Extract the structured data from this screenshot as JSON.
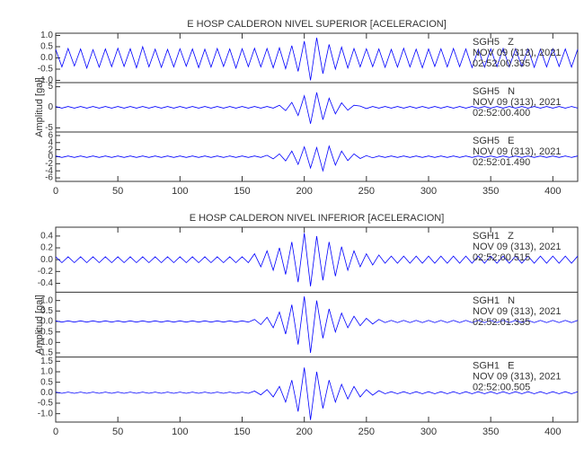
{
  "chart_data": [
    {
      "type": "line",
      "title": "E HOSP CALDERON NIVEL SUPERIOR [ACELERACION]",
      "y_label": "Amplitud [gal]",
      "xlim": [
        0,
        420
      ],
      "xticks": [
        0,
        50,
        100,
        150,
        200,
        250,
        300,
        350,
        400
      ],
      "x": [
        0,
        5,
        10,
        15,
        20,
        25,
        30,
        35,
        40,
        45,
        50,
        55,
        60,
        65,
        70,
        75,
        80,
        85,
        90,
        95,
        100,
        105,
        110,
        115,
        120,
        125,
        130,
        135,
        140,
        145,
        150,
        155,
        160,
        165,
        170,
        175,
        180,
        185,
        190,
        195,
        200,
        205,
        210,
        215,
        220,
        225,
        230,
        235,
        240,
        245,
        250,
        255,
        260,
        265,
        270,
        275,
        280,
        285,
        290,
        295,
        300,
        305,
        310,
        315,
        320,
        325,
        330,
        335,
        340,
        345,
        350,
        355,
        360,
        365,
        370,
        375,
        380,
        385,
        390,
        395,
        400,
        405,
        410,
        415,
        420
      ],
      "series": [
        {
          "name": "SGH5   Z",
          "date": "NOV 09 (313), 2021",
          "time": "02:52:00.335",
          "color": "#0000ff",
          "ylim": [
            -1.1,
            1.1
          ],
          "yticks": [
            {
              "value": -1,
              "label": "-1.0"
            },
            -0.5,
            {
              "value": 0,
              "label": "0.0"
            },
            0.5,
            {
              "value": 1,
              "label": "1.0"
            }
          ],
          "values": [
            0.38,
            -0.4,
            0.42,
            -0.36,
            0.4,
            -0.45,
            0.37,
            -0.41,
            0.4,
            -0.39,
            0.43,
            -0.38,
            0.41,
            -0.44,
            0.5,
            -0.4,
            0.39,
            -0.42,
            0.38,
            -0.4,
            0.41,
            -0.37,
            0.4,
            -0.43,
            0.39,
            -0.41,
            0.42,
            -0.38,
            0.4,
            -0.45,
            0.41,
            -0.39,
            0.43,
            -0.4,
            0.42,
            -0.44,
            0.45,
            -0.48,
            0.55,
            -0.6,
            0.75,
            -1.0,
            0.9,
            -0.7,
            0.6,
            -0.5,
            0.48,
            -0.45,
            0.42,
            -0.4,
            0.41,
            -0.39,
            0.4,
            -0.42,
            0.38,
            -0.41,
            0.43,
            -0.4,
            0.39,
            -0.44,
            0.4,
            -0.38,
            0.41,
            -0.4,
            0.42,
            -0.39,
            0.4,
            -0.43,
            0.38,
            -0.41,
            0.4,
            -0.39,
            0.42,
            -0.4,
            0.41,
            -0.38,
            0.4,
            -0.42,
            0.39,
            -0.4,
            0.41,
            -0.38,
            0.4,
            -0.41,
            0.39
          ]
        },
        {
          "name": "SGH5   N",
          "date": "NOV 09 (313), 2021",
          "time": "02:52:00.400",
          "color": "#0000ff",
          "ylim": [
            -6,
            6
          ],
          "yticks": [
            -5,
            0,
            5
          ],
          "values": [
            0.2,
            -0.2,
            0.2,
            -0.2,
            0.2,
            -0.2,
            0.2,
            -0.2,
            0.2,
            -0.2,
            0.2,
            -0.2,
            0.2,
            -0.2,
            0.2,
            -0.2,
            0.2,
            -0.2,
            0.2,
            -0.2,
            0.2,
            -0.2,
            0.2,
            -0.2,
            0.2,
            -0.2,
            0.2,
            -0.2,
            0.2,
            -0.2,
            0.2,
            -0.2,
            0.2,
            -0.2,
            0.2,
            -0.2,
            0.5,
            -0.8,
            1.2,
            -2,
            2.8,
            -4,
            3.6,
            -3,
            2.2,
            -1.6,
            1.1,
            -0.7,
            0.5,
            0.3,
            -0.3,
            0.2,
            -0.2,
            0.2,
            -0.2,
            0.2,
            -0.2,
            0.2,
            -0.2,
            0.2,
            -0.2,
            0.2,
            -0.2,
            0.2,
            -0.2,
            0.2,
            -0.2,
            0.2,
            -0.2,
            0.2,
            -0.2,
            0.2,
            -0.2,
            0.2,
            -0.2,
            0.2,
            -0.2,
            0.2,
            -0.2,
            0.2,
            -0.2,
            0.2,
            -0.2,
            0.2,
            -0.2
          ]
        },
        {
          "name": "SGH5   E",
          "date": "NOV 09 (313), 2021",
          "time": "02:52:01.490",
          "color": "#0000ff",
          "ylim": [
            -7,
            7
          ],
          "yticks": [
            -6,
            -4,
            -2,
            0,
            2,
            4,
            6
          ],
          "values": [
            0.2,
            -0.2,
            0.2,
            -0.2,
            0.2,
            -0.2,
            0.2,
            -0.2,
            0.2,
            -0.2,
            0.2,
            -0.2,
            0.2,
            -0.2,
            0.2,
            -0.2,
            0.2,
            -0.2,
            0.2,
            -0.2,
            0.2,
            -0.2,
            0.2,
            -0.2,
            0.2,
            -0.2,
            0.2,
            -0.2,
            0.2,
            -0.2,
            0.2,
            -0.2,
            0.2,
            -0.2,
            0.4,
            -0.6,
            0.8,
            -1.2,
            1.6,
            -2.2,
            2.8,
            -3.2,
            2.6,
            -4,
            3,
            -2.4,
            1.6,
            -1.1,
            0.8,
            -0.5,
            0.3,
            -0.3,
            0.2,
            -0.2,
            0.2,
            -0.2,
            0.2,
            -0.2,
            0.2,
            -0.2,
            0.2,
            -0.2,
            0.2,
            -0.2,
            0.2,
            -0.2,
            0.2,
            -0.2,
            0.2,
            -0.2,
            0.2,
            -0.2,
            0.2,
            -0.2,
            0.2,
            -0.2,
            0.2,
            -0.2,
            0.2,
            -0.2,
            0.2,
            -0.2,
            0.2,
            -0.2,
            0.2
          ]
        }
      ]
    },
    {
      "type": "line",
      "title": "E HOSP CALDERON NIVEL INFERIOR [ACELERACION]",
      "y_label": "Amplitud [gal]",
      "xlim": [
        0,
        420
      ],
      "xticks": [
        0,
        50,
        100,
        150,
        200,
        250,
        300,
        350,
        400
      ],
      "x": [
        0,
        5,
        10,
        15,
        20,
        25,
        30,
        35,
        40,
        45,
        50,
        55,
        60,
        65,
        70,
        75,
        80,
        85,
        90,
        95,
        100,
        105,
        110,
        115,
        120,
        125,
        130,
        135,
        140,
        145,
        150,
        155,
        160,
        165,
        170,
        175,
        180,
        185,
        190,
        195,
        200,
        205,
        210,
        215,
        220,
        225,
        230,
        235,
        240,
        245,
        250,
        255,
        260,
        265,
        270,
        275,
        280,
        285,
        290,
        295,
        300,
        305,
        310,
        315,
        320,
        325,
        330,
        335,
        340,
        345,
        350,
        355,
        360,
        365,
        370,
        375,
        380,
        385,
        390,
        395,
        400,
        405,
        410,
        415,
        420
      ],
      "series": [
        {
          "name": "SGH1   Z",
          "date": "NOV 09 (313), 2021",
          "time": "02:52:00.515",
          "color": "#0000ff",
          "ylim": [
            -0.55,
            0.55
          ],
          "yticks": [
            -0.4,
            -0.2,
            {
              "value": 0,
              "label": "0.0"
            },
            0.2,
            0.4
          ],
          "values": [
            0.05,
            -0.05,
            0.05,
            -0.05,
            0.05,
            -0.05,
            0.05,
            -0.05,
            0.05,
            -0.05,
            0.05,
            -0.05,
            0.05,
            -0.05,
            0.05,
            -0.05,
            0.05,
            -0.05,
            0.05,
            -0.05,
            0.05,
            -0.05,
            0.05,
            -0.05,
            0.05,
            -0.05,
            0.05,
            -0.05,
            0.05,
            -0.05,
            0.05,
            -0.05,
            0.1,
            -0.12,
            0.15,
            -0.18,
            0.2,
            -0.25,
            0.3,
            -0.38,
            0.45,
            -0.45,
            0.4,
            -0.35,
            0.3,
            -0.28,
            0.22,
            -0.18,
            0.15,
            -0.12,
            0.1,
            -0.09,
            0.08,
            -0.06,
            0.06,
            -0.06,
            0.06,
            -0.06,
            0.06,
            -0.06,
            0.06,
            -0.06,
            0.06,
            -0.06,
            0.06,
            -0.06,
            0.06,
            -0.06,
            0.06,
            -0.06,
            0.06,
            -0.06,
            0.06,
            -0.06,
            0.06,
            -0.06,
            0.06,
            -0.06,
            0.06,
            -0.06,
            0.06,
            -0.06,
            0.06,
            -0.06,
            0.06
          ]
        },
        {
          "name": "SGH1   N",
          "date": "NOV 09 (313), 2021",
          "time": "02:52:01.335",
          "color": "#0000ff",
          "ylim": [
            -1.7,
            1.4
          ],
          "yticks": [
            -1.5,
            {
              "value": -1,
              "label": "-1.0"
            },
            -0.5,
            {
              "value": 0,
              "label": "0.0"
            },
            0.5,
            {
              "value": 1,
              "label": "1.0"
            }
          ],
          "values": [
            0.03,
            -0.03,
            0.03,
            -0.03,
            0.03,
            -0.03,
            0.03,
            -0.03,
            0.03,
            -0.03,
            0.03,
            -0.03,
            0.03,
            -0.03,
            0.03,
            -0.03,
            0.03,
            -0.03,
            0.03,
            -0.03,
            0.03,
            -0.03,
            0.03,
            -0.03,
            0.03,
            -0.03,
            0.03,
            -0.03,
            0.03,
            -0.03,
            0.03,
            -0.03,
            0.1,
            -0.15,
            0.2,
            -0.3,
            0.45,
            -0.6,
            0.8,
            -1.1,
            1.2,
            -1.5,
            1.0,
            -0.8,
            0.6,
            -0.5,
            0.4,
            -0.3,
            0.25,
            -0.2,
            0.15,
            -0.12,
            0.1,
            -0.05,
            0.05,
            -0.05,
            0.05,
            -0.05,
            0.05,
            -0.05,
            0.05,
            -0.05,
            0.05,
            -0.05,
            0.05,
            -0.05,
            0.05,
            -0.05,
            0.05,
            -0.05,
            0.05,
            -0.05,
            0.05,
            -0.05,
            0.05,
            -0.05,
            0.05,
            -0.05,
            0.05,
            -0.05,
            0.05,
            -0.05,
            0.05,
            -0.05,
            0.05
          ]
        },
        {
          "name": "SGH1   E",
          "date": "NOV 09 (313), 2021",
          "time": "02:52:00.505",
          "color": "#0000ff",
          "ylim": [
            -1.4,
            1.7
          ],
          "yticks": [
            {
              "value": -1,
              "label": "-1.0"
            },
            -0.5,
            {
              "value": 0,
              "label": "0.0"
            },
            0.5,
            {
              "value": 1,
              "label": "1.0"
            },
            1.5
          ],
          "values": [
            0.03,
            -0.03,
            0.03,
            -0.03,
            0.03,
            -0.03,
            0.03,
            -0.03,
            0.03,
            -0.03,
            0.03,
            -0.03,
            0.03,
            -0.03,
            0.03,
            -0.03,
            0.03,
            -0.03,
            0.03,
            -0.03,
            0.03,
            -0.03,
            0.03,
            -0.03,
            0.03,
            -0.03,
            0.03,
            -0.03,
            0.03,
            -0.03,
            0.03,
            -0.03,
            0.08,
            -0.1,
            0.15,
            -0.2,
            0.3,
            -0.45,
            0.6,
            -0.9,
            1.2,
            -1.3,
            1.0,
            -0.75,
            0.6,
            -0.45,
            0.4,
            -0.3,
            0.3,
            -0.2,
            0.15,
            -0.12,
            0.1,
            -0.05,
            0.05,
            -0.05,
            0.05,
            -0.05,
            0.05,
            -0.05,
            0.05,
            -0.05,
            0.05,
            -0.05,
            0.05,
            -0.05,
            0.05,
            -0.05,
            0.05,
            -0.05,
            0.05,
            -0.05,
            0.05,
            -0.05,
            0.05,
            -0.05,
            0.05,
            -0.05,
            0.05,
            -0.05,
            0.05,
            -0.05,
            0.05,
            -0.05,
            0.05
          ]
        }
      ]
    }
  ]
}
